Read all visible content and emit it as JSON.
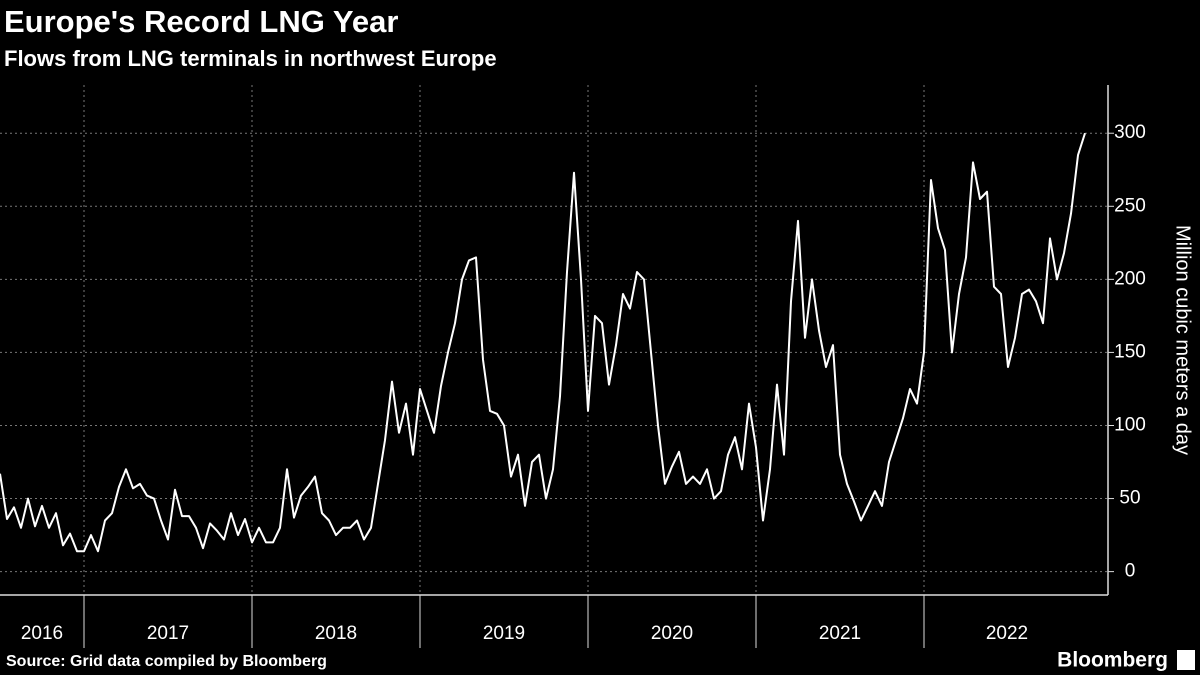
{
  "chart_data": {
    "type": "line",
    "title": "Europe's Record LNG Year",
    "subtitle": "Flows from LNG terminals in northwest Europe",
    "y_label": "Million cubic meters a day",
    "source": "Source: Grid data compiled by Bloomberg",
    "brand": "Bloomberg",
    "categories": [
      "2016",
      null,
      null,
      null,
      null,
      null,
      null,
      null,
      null,
      null,
      null,
      null,
      "2017",
      null,
      null,
      null,
      null,
      null,
      null,
      null,
      null,
      null,
      null,
      null,
      null,
      null,
      null,
      null,
      null,
      null,
      null,
      null,
      null,
      null,
      null,
      null,
      "2018",
      null,
      null,
      null,
      null,
      null,
      null,
      null,
      null,
      null,
      null,
      null,
      null,
      null,
      null,
      null,
      null,
      null,
      null,
      null,
      null,
      null,
      null,
      null,
      "2019",
      null,
      null,
      null,
      null,
      null,
      null,
      null,
      null,
      null,
      null,
      null,
      null,
      null,
      null,
      null,
      null,
      null,
      null,
      null,
      null,
      null,
      null,
      null,
      "2020",
      null,
      null,
      null,
      null,
      null,
      null,
      null,
      null,
      null,
      null,
      null,
      null,
      null,
      null,
      null,
      null,
      null,
      null,
      null,
      null,
      null,
      null,
      null,
      "2021",
      null,
      null,
      null,
      null,
      null,
      null,
      null,
      null,
      null,
      null,
      null,
      null,
      null,
      null,
      null,
      null,
      null,
      null,
      null,
      null,
      null,
      null,
      null,
      "2022",
      null,
      null,
      null,
      null,
      null,
      null,
      null,
      null,
      null,
      null,
      null,
      null,
      null,
      null,
      null,
      null,
      null,
      null,
      null,
      null,
      null,
      null,
      null
    ],
    "series": [
      {
        "color": "#ffffff",
        "values": [
          67,
          36,
          44,
          30,
          50,
          31,
          45,
          30,
          40,
          18,
          26,
          14,
          14,
          25,
          14,
          35,
          40,
          58,
          70,
          57,
          60,
          52,
          50,
          35,
          22,
          56,
          38,
          38,
          30,
          16,
          33,
          28,
          22,
          40,
          25,
          36,
          20,
          30,
          20,
          20,
          30,
          70,
          37,
          52,
          58,
          65,
          40,
          35,
          25,
          30,
          30,
          35,
          22,
          30,
          60,
          90,
          130,
          95,
          115,
          80,
          125,
          110,
          95,
          127,
          150,
          170,
          200,
          213,
          215,
          145,
          110,
          108,
          100,
          65,
          80,
          45,
          75,
          80,
          50,
          70,
          120,
          205,
          273,
          200,
          110,
          175,
          170,
          128,
          155,
          190,
          180,
          205,
          200,
          150,
          100,
          60,
          72,
          82,
          60,
          65,
          60,
          70,
          50,
          55,
          80,
          92,
          70,
          115,
          85,
          35,
          70,
          128,
          80,
          185,
          240,
          160,
          200,
          165,
          140,
          155,
          80,
          60,
          48,
          35,
          45,
          55,
          45,
          75,
          90,
          105,
          125,
          115,
          150,
          268,
          235,
          220,
          150,
          190,
          215,
          280,
          255,
          260,
          195,
          190,
          140,
          160,
          190,
          193,
          185,
          170,
          228,
          200,
          218,
          245,
          285,
          300
        ]
      }
    ],
    "ylim": [
      -16,
      333
    ],
    "yticks": [
      0,
      50,
      100,
      150,
      200,
      250,
      300
    ],
    "grid": true
  }
}
